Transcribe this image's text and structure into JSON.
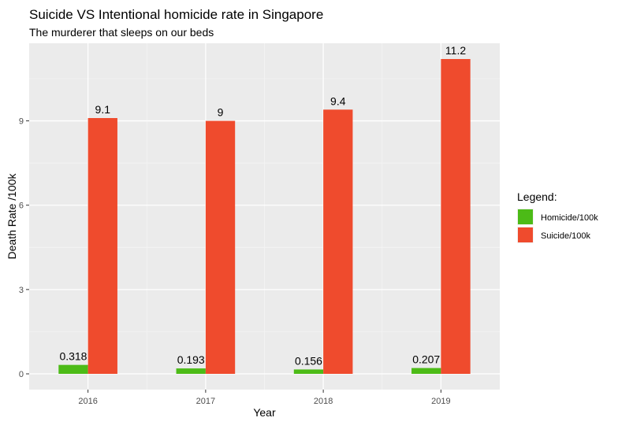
{
  "chart_data": {
    "type": "bar",
    "title": "Suicide VS Intentional homicide rate in Singapore",
    "subtitle": "The murderer that sleeps on our beds",
    "xlabel": "Year",
    "ylabel": "Death Rate /100k",
    "categories": [
      "2016",
      "2017",
      "2018",
      "2019"
    ],
    "yticks": [
      0,
      3,
      6,
      9
    ],
    "ylim": [
      -0.56,
      11.76
    ],
    "grid": true,
    "legend": {
      "title": "Legend:",
      "position": "right"
    },
    "series": [
      {
        "name": "Homicide/100k",
        "color": "#4cbb17",
        "values": [
          0.318,
          0.193,
          0.156,
          0.207
        ],
        "labels": [
          "0.318",
          "0.193",
          "0.156",
          "0.207"
        ]
      },
      {
        "name": "Suicide/100k",
        "color": "#ef4b2d",
        "values": [
          9.1,
          9,
          9.4,
          11.2
        ],
        "labels": [
          "9.1",
          "9",
          "9.4",
          "11.2"
        ]
      }
    ]
  }
}
